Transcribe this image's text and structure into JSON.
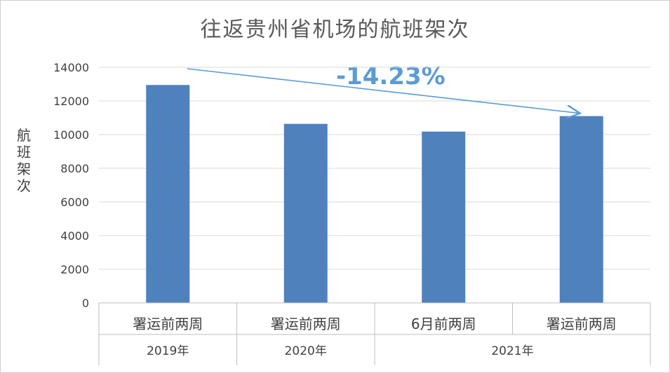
{
  "chart_data": {
    "type": "bar",
    "title": "往返贵州省机场的航班架次",
    "ylabel": "航班架次",
    "xlabel": "",
    "ylim": [
      0,
      14000
    ],
    "yticks": [
      0,
      2000,
      4000,
      6000,
      8000,
      10000,
      12000,
      14000
    ],
    "categories": [
      "署运前两周",
      "署运前两周",
      "6月前两周",
      "署运前两周"
    ],
    "groups": [
      {
        "label": "2019年",
        "span": 1
      },
      {
        "label": "2020年",
        "span": 1
      },
      {
        "label": "2021年",
        "span": 2
      }
    ],
    "values": [
      12950,
      10640,
      10180,
      11100
    ],
    "bar_color": "#4f81bd",
    "grid": true,
    "annotation": {
      "text": "-14.23%",
      "color": "#5b9bd5"
    }
  }
}
